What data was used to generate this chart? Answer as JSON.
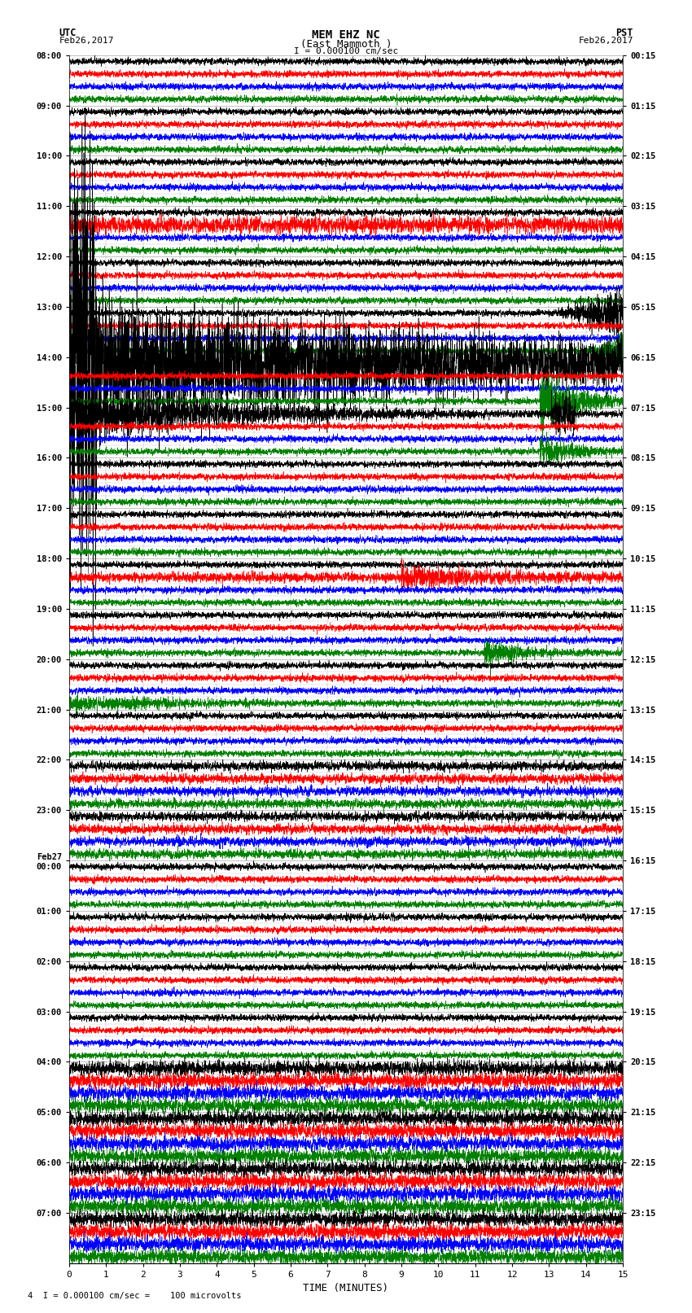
{
  "title_line1": "MEM EHZ NC",
  "title_line2": "(East Mammoth )",
  "scale_label": "I = 0.000100 cm/sec",
  "left_label_top": "UTC",
  "left_label_date": "Feb26,2017",
  "right_label_top": "PST",
  "right_label_date": "Feb26,2017",
  "bottom_label": "TIME (MINUTES)",
  "footer_label": "4  I = 0.000100 cm/sec =    100 microvolts",
  "xlabel_ticks": [
    0,
    1,
    2,
    3,
    4,
    5,
    6,
    7,
    8,
    9,
    10,
    11,
    12,
    13,
    14,
    15
  ],
  "utc_times_hourly": [
    "08:00",
    "09:00",
    "10:00",
    "11:00",
    "12:00",
    "13:00",
    "14:00",
    "15:00",
    "16:00",
    "17:00",
    "18:00",
    "19:00",
    "20:00",
    "21:00",
    "22:00",
    "23:00",
    "Feb27\n00:00",
    "01:00",
    "02:00",
    "03:00",
    "04:00",
    "05:00",
    "06:00",
    "07:00"
  ],
  "pst_times_hourly": [
    "00:15",
    "01:15",
    "02:15",
    "03:15",
    "04:15",
    "05:15",
    "06:15",
    "07:15",
    "08:15",
    "09:15",
    "10:15",
    "11:15",
    "12:15",
    "13:15",
    "14:15",
    "15:15",
    "16:15",
    "17:15",
    "18:15",
    "19:15",
    "20:15",
    "21:15",
    "22:15",
    "23:15"
  ],
  "colors": [
    "black",
    "red",
    "blue",
    "green"
  ],
  "n_rows": 96,
  "n_hours": 24,
  "rows_per_hour": 4,
  "fig_width": 8.5,
  "fig_height": 16.13,
  "bg_color": "white",
  "grid_color": "#aaaaaa",
  "font_family": "monospace"
}
